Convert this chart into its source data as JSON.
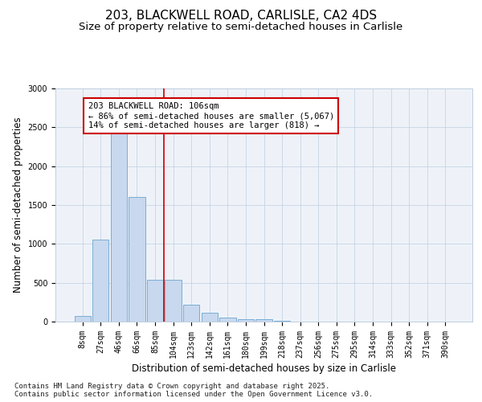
{
  "title_line1": "203, BLACKWELL ROAD, CARLISLE, CA2 4DS",
  "title_line2": "Size of property relative to semi-detached houses in Carlisle",
  "xlabel": "Distribution of semi-detached houses by size in Carlisle",
  "ylabel": "Number of semi-detached properties",
  "categories": [
    "8sqm",
    "27sqm",
    "46sqm",
    "66sqm",
    "85sqm",
    "104sqm",
    "123sqm",
    "142sqm",
    "161sqm",
    "180sqm",
    "199sqm",
    "218sqm",
    "237sqm",
    "256sqm",
    "275sqm",
    "295sqm",
    "314sqm",
    "333sqm",
    "352sqm",
    "371sqm",
    "390sqm"
  ],
  "values": [
    75,
    1060,
    2490,
    1600,
    540,
    540,
    220,
    115,
    55,
    30,
    35,
    10,
    5,
    5,
    0,
    0,
    0,
    0,
    0,
    0,
    0
  ],
  "bar_color": "#c8d8ee",
  "bar_edge_color": "#7badd4",
  "vline_color": "#cc0000",
  "annotation_text": "203 BLACKWELL ROAD: 106sqm\n← 86% of semi-detached houses are smaller (5,067)\n14% of semi-detached houses are larger (818) →",
  "annotation_box_color": "#ffffff",
  "annotation_box_edge": "#cc0000",
  "ylim": [
    0,
    3000
  ],
  "yticks": [
    0,
    500,
    1000,
    1500,
    2000,
    2500,
    3000
  ],
  "background_color": "#eef2f8",
  "footer_text": "Contains HM Land Registry data © Crown copyright and database right 2025.\nContains public sector information licensed under the Open Government Licence v3.0.",
  "title_fontsize": 11,
  "subtitle_fontsize": 9.5,
  "axis_label_fontsize": 8.5,
  "tick_fontsize": 7,
  "annotation_fontsize": 7.5,
  "footer_fontsize": 6.5
}
